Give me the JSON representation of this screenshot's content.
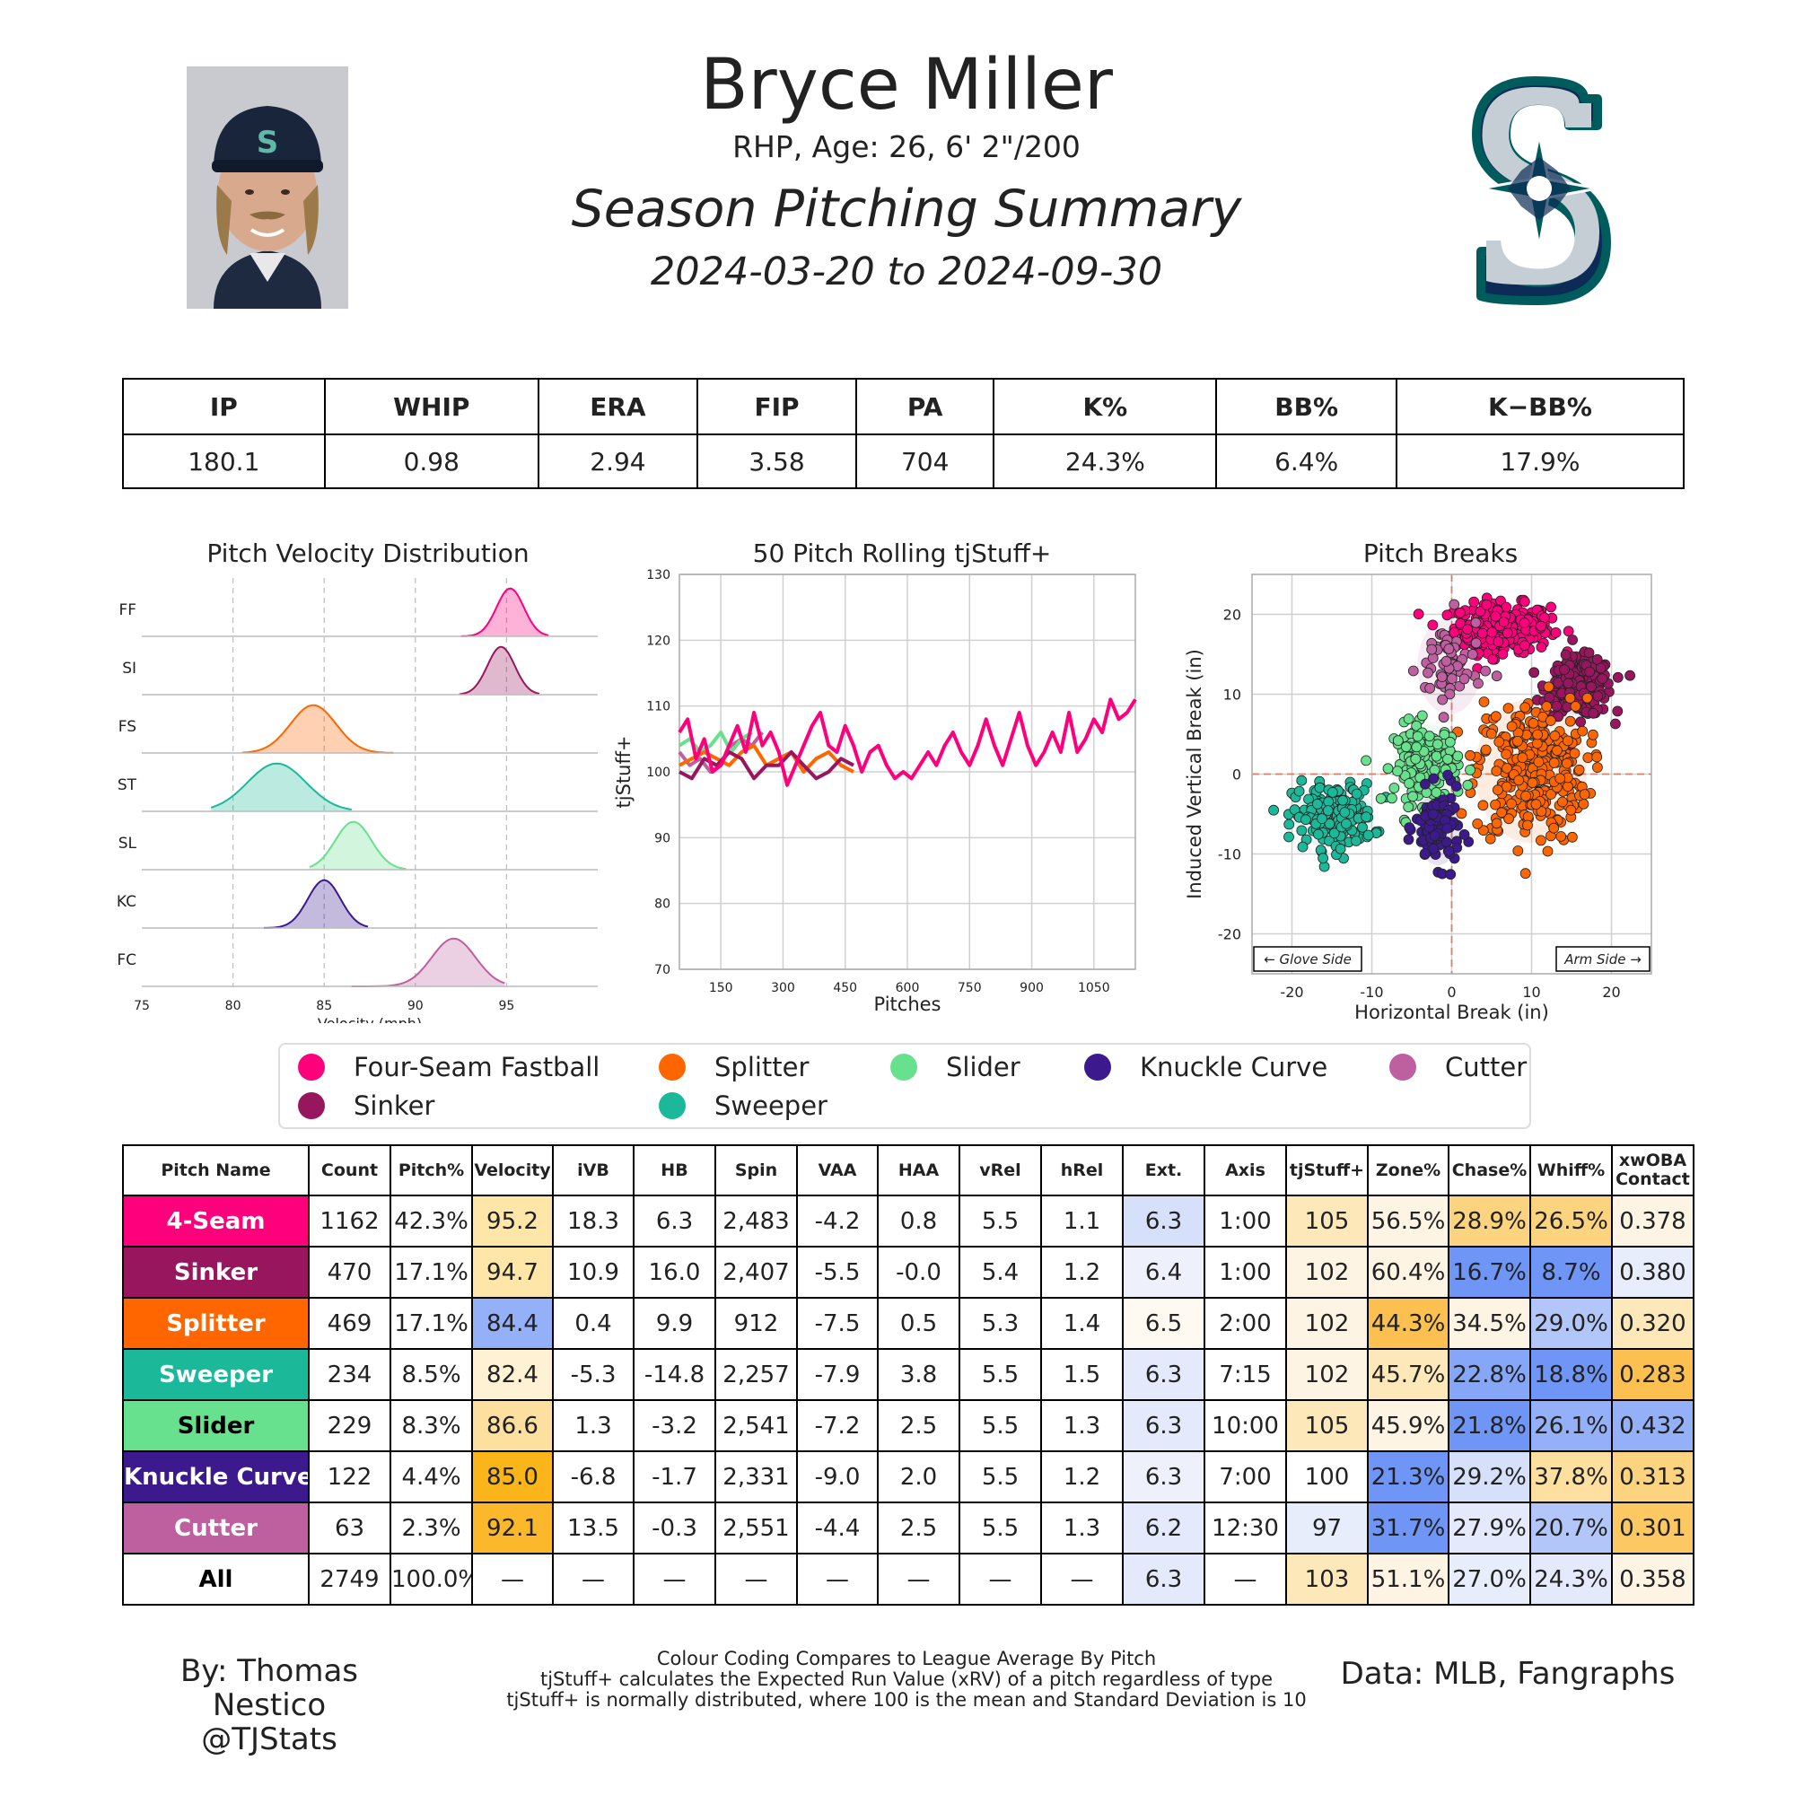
{
  "header": {
    "name": "Bryce Miller",
    "info": "RHP, Age: 26, 6' 2\"/200",
    "title": "Season Pitching Summary",
    "dates": "2024-03-20 to 2024-09-30"
  },
  "summary": {
    "headers": [
      "IP",
      "WHIP",
      "ERA",
      "FIP",
      "PA",
      "K%",
      "BB%",
      "K−BB%"
    ],
    "values": [
      "180.1",
      "0.98",
      "2.94",
      "3.58",
      "704",
      "24.3%",
      "6.4%",
      "17.9%"
    ]
  },
  "colors": {
    "Four-Seam Fastball": "#ff007d",
    "Sinker": "#98165d",
    "Splitter": "#ff6600",
    "Sweeper": "#1bb999",
    "Slider": "#67e18d",
    "Knuckle Curve": "#3c1a8d",
    "Cutter": "#be5fa0"
  },
  "legend": [
    "Four-Seam Fastball",
    "Splitter",
    "Slider",
    "Knuckle Curve",
    "Cutter",
    "Sinker",
    "Sweeper"
  ],
  "chart_data": [
    {
      "type": "area",
      "title": "Pitch Velocity Distribution",
      "xlabel": "Velocity (mph)",
      "xlim": [
        75,
        100
      ],
      "xticks": [
        75,
        80,
        85,
        90,
        95
      ],
      "rows": [
        {
          "label": "FF",
          "pitch": "Four-Seam Fastball",
          "mean": 95.2,
          "sd": 0.75,
          "min": 92.5,
          "max": 97.3
        },
        {
          "label": "SI",
          "pitch": "Sinker",
          "mean": 94.7,
          "sd": 0.75,
          "min": 92.4,
          "max": 96.8
        },
        {
          "label": "FS",
          "pitch": "Splitter",
          "mean": 84.4,
          "sd": 1.25,
          "min": 80.5,
          "max": 88.8
        },
        {
          "label": "ST",
          "pitch": "Sweeper",
          "mean": 82.4,
          "sd": 1.6,
          "min": 78.8,
          "max": 86.5
        },
        {
          "label": "SL",
          "pitch": "Slider",
          "mean": 86.6,
          "sd": 1.0,
          "min": 84.2,
          "max": 89.5
        },
        {
          "label": "KC",
          "pitch": "Knuckle Curve",
          "mean": 85.0,
          "sd": 0.9,
          "min": 81.7,
          "max": 87.4
        },
        {
          "label": "FC",
          "pitch": "Cutter",
          "mean": 92.1,
          "sd": 1.2,
          "min": 86.5,
          "max": 94.9
        }
      ]
    },
    {
      "type": "line",
      "title": "50 Pitch Rolling tjStuff+",
      "xlabel": "Pitches",
      "ylabel": "tjStuff+",
      "xlim": [
        50,
        1150
      ],
      "ylim": [
        70,
        130
      ],
      "xticks": [
        150,
        300,
        450,
        600,
        750,
        900,
        1050
      ],
      "yticks": [
        70,
        80,
        90,
        100,
        110,
        120,
        130
      ],
      "series": [
        {
          "pitch": "Four-Seam Fastball",
          "x": [
            50,
            70,
            90,
            110,
            130,
            150,
            170,
            190,
            210,
            230,
            250,
            270,
            290,
            310,
            330,
            350,
            370,
            390,
            410,
            430,
            450,
            470,
            490,
            510,
            530,
            550,
            570,
            590,
            610,
            630,
            650,
            670,
            690,
            710,
            730,
            750,
            770,
            790,
            810,
            830,
            850,
            870,
            890,
            910,
            930,
            950,
            970,
            990,
            1010,
            1030,
            1050,
            1070,
            1090,
            1110,
            1130,
            1150
          ],
          "y": [
            106,
            108,
            102,
            105,
            100,
            101,
            104,
            107,
            103,
            109,
            104,
            106,
            103,
            98,
            101,
            104,
            107,
            109,
            104,
            103,
            107,
            104,
            100,
            103,
            104,
            101,
            99,
            100,
            99,
            101,
            103,
            101,
            104,
            106,
            103,
            101,
            104,
            108,
            104,
            101,
            105,
            109,
            104,
            101,
            103,
            106,
            103,
            109,
            103,
            105,
            108,
            106,
            111,
            108,
            109,
            111
          ]
        },
        {
          "pitch": "Sinker",
          "x": [
            50,
            80,
            110,
            140,
            170,
            200,
            230,
            260,
            290,
            320,
            350,
            380,
            410,
            440,
            470
          ],
          "y": [
            100,
            99,
            102,
            101,
            103,
            102,
            99,
            101,
            101,
            103,
            101,
            99,
            100,
            102,
            101
          ]
        },
        {
          "pitch": "Splitter",
          "x": [
            50,
            80,
            110,
            140,
            170,
            200,
            230,
            260,
            290,
            320,
            350,
            380,
            410,
            440,
            470
          ],
          "y": [
            101,
            102,
            103,
            102,
            101,
            103,
            104,
            101,
            102,
            103,
            100,
            102,
            103,
            101,
            100
          ]
        },
        {
          "pitch": "Slider",
          "x": [
            50,
            75,
            100,
            125,
            150,
            175,
            200,
            225
          ],
          "y": [
            104,
            105,
            103,
            104,
            106,
            103,
            105,
            106
          ]
        },
        {
          "pitch": "Cutter",
          "x": [
            50,
            75,
            100,
            125,
            150,
            175,
            200,
            225,
            250
          ],
          "y": [
            103,
            101,
            102,
            100,
            101,
            104,
            105,
            104,
            106
          ]
        }
      ]
    },
    {
      "type": "scatter",
      "title": "Pitch Breaks",
      "xlabel": "Horizontal Break (in)",
      "ylabel": "Induced Vertical Break (in)",
      "xlim": [
        -25,
        25
      ],
      "ylim": [
        -25,
        25
      ],
      "xticks": [
        -20,
        -10,
        0,
        10,
        20
      ],
      "yticks": [
        -20,
        -10,
        0,
        10,
        20
      ],
      "annotations": [
        "← Glove Side",
        "Arm Side →"
      ],
      "clusters": [
        {
          "pitch": "Four-Seam Fastball",
          "cx": 6.3,
          "cy": 18.3,
          "sx": 3.0,
          "sy": 1.5,
          "n": 300
        },
        {
          "pitch": "Sinker",
          "cx": 16.0,
          "cy": 10.9,
          "sx": 2.0,
          "sy": 1.8,
          "n": 240
        },
        {
          "pitch": "Splitter",
          "cx": 9.9,
          "cy": 0.4,
          "sx": 3.5,
          "sy": 4.5,
          "n": 300
        },
        {
          "pitch": "Sweeper",
          "cx": -14.8,
          "cy": -5.3,
          "sx": 2.5,
          "sy": 2.0,
          "n": 200
        },
        {
          "pitch": "Slider",
          "cx": -3.2,
          "cy": 1.3,
          "sx": 2.0,
          "sy": 2.5,
          "n": 160
        },
        {
          "pitch": "Knuckle Curve",
          "cx": -1.7,
          "cy": -6.8,
          "sx": 1.4,
          "sy": 2.3,
          "n": 100
        },
        {
          "pitch": "Cutter",
          "cx": -0.3,
          "cy": 13.5,
          "sx": 2.0,
          "sy": 3.0,
          "n": 60
        }
      ]
    }
  ],
  "pitch_table": {
    "headers": [
      "Pitch Name",
      "Count",
      "Pitch%",
      "Velocity",
      "iVB",
      "HB",
      "Spin",
      "VAA",
      "HAA",
      "vRel",
      "hRel",
      "Ext.",
      "Axis",
      "tjStuff+",
      "Zone%",
      "Chase%",
      "Whiff%",
      "xwOBA Contact"
    ],
    "rows": [
      {
        "name": "4-Seam",
        "pitch": "Four-Seam Fastball",
        "text": "#ffffff",
        "cells": [
          "1162",
          "42.3%",
          "95.2",
          "18.3",
          "6.3",
          "2,483",
          "-4.2",
          "0.8",
          "5.5",
          "1.1",
          "6.3",
          "1:00",
          "105",
          "56.5%",
          "28.9%",
          "26.5%",
          "0.378"
        ],
        "fills": [
          "",
          "",
          "#fde6a8",
          "",
          "",
          "",
          "",
          "",
          "",
          "",
          "#d7e0fa",
          "",
          "#fde8b9",
          "#fef4e3",
          "#fcd37e",
          "#fcd37e",
          "#fef4e3"
        ]
      },
      {
        "name": "Sinker",
        "pitch": "Sinker",
        "text": "#ffffff",
        "cells": [
          "470",
          "17.1%",
          "94.7",
          "10.9",
          "16.0",
          "2,407",
          "-5.5",
          "-0.0",
          "5.4",
          "1.2",
          "6.4",
          "1:00",
          "102",
          "60.4%",
          "16.7%",
          "8.7%",
          "0.380"
        ],
        "fills": [
          "",
          "",
          "#fde6a8",
          "",
          "",
          "",
          "",
          "",
          "",
          "",
          "#eef1fb",
          "",
          "#fef4e3",
          "#fef4e3",
          "#6f95f7",
          "#6f95f7",
          "#e7edfb"
        ]
      },
      {
        "name": "Splitter",
        "pitch": "Splitter",
        "text": "#ffffff",
        "cells": [
          "469",
          "17.1%",
          "84.4",
          "0.4",
          "9.9",
          "912",
          "-7.5",
          "0.5",
          "5.3",
          "1.4",
          "6.5",
          "2:00",
          "102",
          "44.3%",
          "34.5%",
          "29.0%",
          "0.320"
        ],
        "fills": [
          "",
          "",
          "#94b0f9",
          "",
          "",
          "",
          "",
          "",
          "",
          "",
          "#fffaf1",
          "",
          "#fef4e3",
          "#fbc04f",
          "#fef4e3",
          "#b3c6f9",
          "#fde8b9"
        ]
      },
      {
        "name": "Sweeper",
        "pitch": "Sweeper",
        "text": "#ffffff",
        "cells": [
          "234",
          "8.5%",
          "82.4",
          "-5.3",
          "-14.8",
          "2,257",
          "-7.9",
          "3.8",
          "5.5",
          "1.5",
          "6.3",
          "7:15",
          "102",
          "45.7%",
          "22.8%",
          "18.8%",
          "0.283"
        ],
        "fills": [
          "",
          "",
          "#fef1d4",
          "",
          "",
          "",
          "",
          "",
          "",
          "",
          "#e4eafb",
          "",
          "#fef4e3",
          "#fde8b9",
          "#86a6f8",
          "#6f95f7",
          "#fbc04f"
        ]
      },
      {
        "name": "Slider",
        "pitch": "Slider",
        "text": "#000000",
        "cells": [
          "229",
          "8.3%",
          "86.6",
          "1.3",
          "-3.2",
          "2,541",
          "-7.2",
          "2.5",
          "5.5",
          "1.3",
          "6.3",
          "10:00",
          "105",
          "45.9%",
          "21.8%",
          "26.1%",
          "0.432"
        ],
        "fills": [
          "",
          "",
          "#fde0a0",
          "",
          "",
          "",
          "",
          "",
          "",
          "",
          "#e4eafb",
          "",
          "#fde8b9",
          "#fef4e3",
          "#6f95f7",
          "#94b0f9",
          "#94b0f9"
        ]
      },
      {
        "name": "Knuckle Curve",
        "pitch": "Knuckle Curve",
        "text": "#ffffff",
        "cells": [
          "122",
          "4.4%",
          "85.0",
          "-6.8",
          "-1.7",
          "2,331",
          "-9.0",
          "2.0",
          "5.5",
          "1.2",
          "6.3",
          "7:00",
          "100",
          "21.3%",
          "29.2%",
          "37.8%",
          "0.313"
        ],
        "fills": [
          "",
          "",
          "#fab51a",
          "",
          "",
          "",
          "",
          "",
          "",
          "",
          "#eef1fb",
          "",
          "",
          "#6f95f7",
          "#d7e0fa",
          "#fde0a0",
          "#fcd37e"
        ]
      },
      {
        "name": "Cutter",
        "pitch": "Cutter",
        "text": "#ffffff",
        "cells": [
          "63",
          "2.3%",
          "92.1",
          "13.5",
          "-0.3",
          "2,551",
          "-4.4",
          "2.5",
          "5.5",
          "1.3",
          "6.2",
          "12:30",
          "97",
          "31.7%",
          "27.9%",
          "20.7%",
          "0.301"
        ],
        "fills": [
          "",
          "",
          "#fbb82b",
          "",
          "",
          "",
          "",
          "",
          "",
          "",
          "#e4eafb",
          "",
          "#e7edfb",
          "#6f95f7",
          "#e4eafb",
          "#b3c6f9",
          "#fcc862"
        ]
      },
      {
        "name": "All",
        "pitch": "",
        "text": "#000000",
        "cells": [
          "2749",
          "100.0%",
          "—",
          "—",
          "—",
          "—",
          "—",
          "—",
          "—",
          "—",
          "6.3",
          "—",
          "103",
          "51.1%",
          "27.0%",
          "24.3%",
          "0.358"
        ],
        "fills": [
          "",
          "",
          "",
          "",
          "",
          "",
          "",
          "",
          "",
          "",
          "#e4eafb",
          "",
          "#fde8b9",
          "#fef4e3",
          "#e7edfb",
          "#e4eafb",
          "#fef4e3"
        ]
      }
    ]
  },
  "footer": {
    "author": "By: Thomas Nestico",
    "handle": "@TJStats",
    "notes": [
      "Colour Coding Compares to League Average By Pitch",
      "tjStuff+ calculates the Expected Run Value (xRV) of a pitch regardless of type",
      "tjStuff+ is normally distributed, where 100 is the mean and Standard Deviation is 10"
    ],
    "source": "Data: MLB, Fangraphs"
  }
}
